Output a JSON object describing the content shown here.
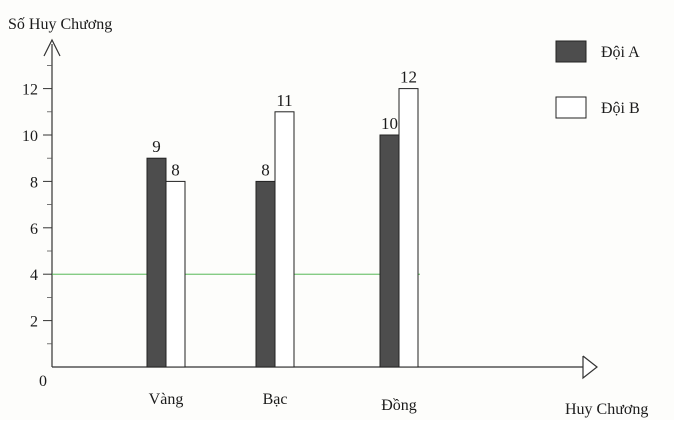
{
  "chart_data": {
    "type": "bar",
    "title": "",
    "ylabel": "Số Huy Chương",
    "xlabel": "Huy Chương",
    "categories": [
      "Vàng",
      "Bạc",
      "Đồng"
    ],
    "series": [
      {
        "name": "Đội A",
        "values": [
          9,
          8,
          10
        ],
        "color": "#4d4d4d"
      },
      {
        "name": "Đội B",
        "values": [
          8,
          11,
          12
        ],
        "color": "#ffffff"
      }
    ],
    "ylim": [
      0,
      14
    ],
    "y_ticks": [
      0,
      2,
      4,
      6,
      8,
      10,
      12
    ],
    "origin_label": "0",
    "legend_position": "top-right",
    "grid": false,
    "reference_line": {
      "value": 4,
      "color": "#3fae3f"
    },
    "data_labels": true
  }
}
